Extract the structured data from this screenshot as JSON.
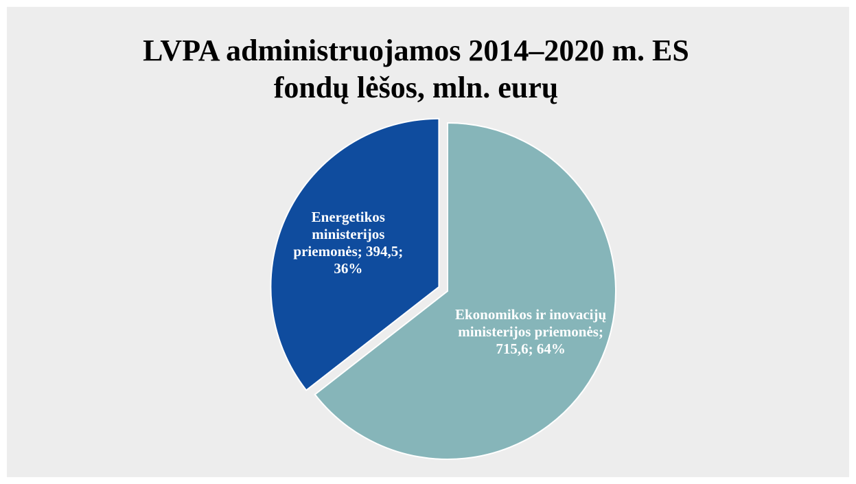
{
  "chart_data": {
    "type": "pie",
    "title": [
      "LVPA administruojamos 2014‒2020 m. ES",
      "fondų lėšos, mln. eurų"
    ],
    "values": [
      715.6,
      394.5
    ],
    "value_labels": [
      "Ekonomikos ir inovacijų ministerijos priemonės; 715,6; 64%",
      "Energetikos ministerijos priemonės; 394,5; 36%"
    ],
    "colors": [
      "#86b5b9",
      "#0f4c9e"
    ],
    "exploded": [
      false,
      true
    ]
  }
}
